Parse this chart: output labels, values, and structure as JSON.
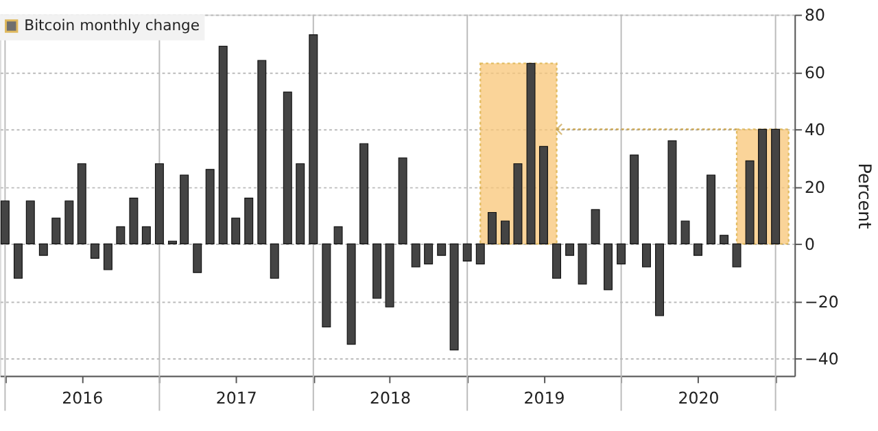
{
  "chart_data": {
    "type": "bar",
    "ylabel": "Percent",
    "x": [
      "2016-01",
      "2016-02",
      "2016-03",
      "2016-04",
      "2016-05",
      "2016-06",
      "2016-07",
      "2016-08",
      "2016-09",
      "2016-10",
      "2016-11",
      "2016-12",
      "2017-01",
      "2017-02",
      "2017-03",
      "2017-04",
      "2017-05",
      "2017-06",
      "2017-07",
      "2017-08",
      "2017-09",
      "2017-10",
      "2017-11",
      "2017-12",
      "2018-01",
      "2018-02",
      "2018-03",
      "2018-04",
      "2018-05",
      "2018-06",
      "2018-07",
      "2018-08",
      "2018-09",
      "2018-10",
      "2018-11",
      "2018-12",
      "2019-01",
      "2019-02",
      "2019-03",
      "2019-04",
      "2019-05",
      "2019-06",
      "2019-07",
      "2019-08",
      "2019-09",
      "2019-10",
      "2019-11",
      "2019-12",
      "2020-01",
      "2020-02",
      "2020-03",
      "2020-04",
      "2020-05",
      "2020-06",
      "2020-07",
      "2020-08",
      "2020-09",
      "2020-10",
      "2020-11",
      "2020-12",
      "2021-01"
    ],
    "series": [
      {
        "name": "Bitcoin monthly change",
        "color": "#444444",
        "values": [
          15,
          -12,
          15,
          -4,
          9,
          15,
          28,
          -5,
          -9,
          6,
          16,
          6,
          28,
          1,
          24,
          -10,
          26,
          69,
          9,
          16,
          64,
          -12,
          53,
          28,
          73,
          -29,
          6,
          -35,
          35,
          -19,
          -22,
          30,
          -8,
          -7,
          -4,
          -37,
          -6,
          -7,
          11,
          8,
          28,
          63,
          34,
          -12,
          -4,
          -14,
          12,
          -16,
          -7,
          31,
          -8,
          -25,
          36,
          8,
          -4,
          24,
          3,
          -8,
          29,
          40,
          40
        ]
      }
    ],
    "xlim": [
      "2015-12-20",
      "2021-02-15"
    ],
    "xticks": [
      {
        "value": "2016-01",
        "label": null
      },
      {
        "value": "2016-07",
        "label": "2016"
      },
      {
        "value": "2017-01",
        "label": null
      },
      {
        "value": "2017-07",
        "label": "2017"
      },
      {
        "value": "2018-01",
        "label": null
      },
      {
        "value": "2018-07",
        "label": "2018"
      },
      {
        "value": "2019-01",
        "label": null
      },
      {
        "value": "2019-07",
        "label": "2019"
      },
      {
        "value": "2020-01",
        "label": null
      },
      {
        "value": "2020-07",
        "label": "2020"
      },
      {
        "value": "2021-01",
        "label": null
      }
    ],
    "ylim": [
      -46,
      80
    ],
    "yticks": [
      -40,
      -20,
      0,
      20,
      40,
      60,
      80
    ],
    "bands": [
      {
        "axis": "x",
        "from": "2019-02",
        "to": "2019-08",
        "color": "#f9c677"
      },
      {
        "axis": "x",
        "from": "2020-10",
        "to": "2021-02",
        "color": "#f9c677"
      }
    ],
    "grid": true,
    "legend": "top left"
  }
}
